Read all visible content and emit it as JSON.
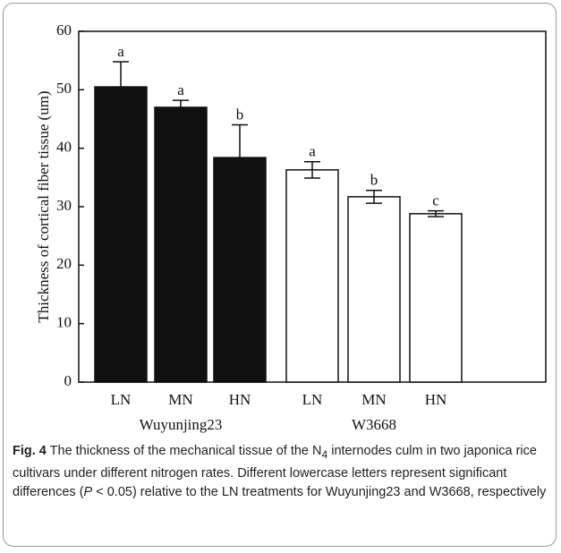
{
  "chart_data": {
    "type": "bar",
    "ylabel": "Thickness of cortical fiber tissue (um)",
    "categories": [
      "LN",
      "MN",
      "HN",
      "LN",
      "MN",
      "HN"
    ],
    "groups": [
      "Wuyunjing23",
      "W3668"
    ],
    "values": [
      50.5,
      47.0,
      38.4,
      36.3,
      31.7,
      28.8
    ],
    "errors": [
      4.3,
      1.2,
      5.6,
      1.4,
      1.1,
      0.5
    ],
    "colors": [
      "#111111",
      "#111111",
      "#111111",
      "#ffffff",
      "#ffffff",
      "#ffffff"
    ],
    "annotations": [
      "a",
      "a",
      "b",
      "a",
      "b",
      "c"
    ],
    "ylim": [
      0,
      60
    ],
    "yticks": [
      0,
      10,
      20,
      30,
      40,
      50,
      60
    ]
  },
  "caption": {
    "label": "Fig. 4",
    "parts": [
      " The thickness of the mechanical tissue of the N",
      "4",
      " internodes culm in two japonica rice cultivars under different nitrogen rates. Different lowercase letters represent significant differences (",
      "P",
      " < 0.05) relative to the LN treatments for Wuyunjing23 and W3668, respectively"
    ]
  }
}
